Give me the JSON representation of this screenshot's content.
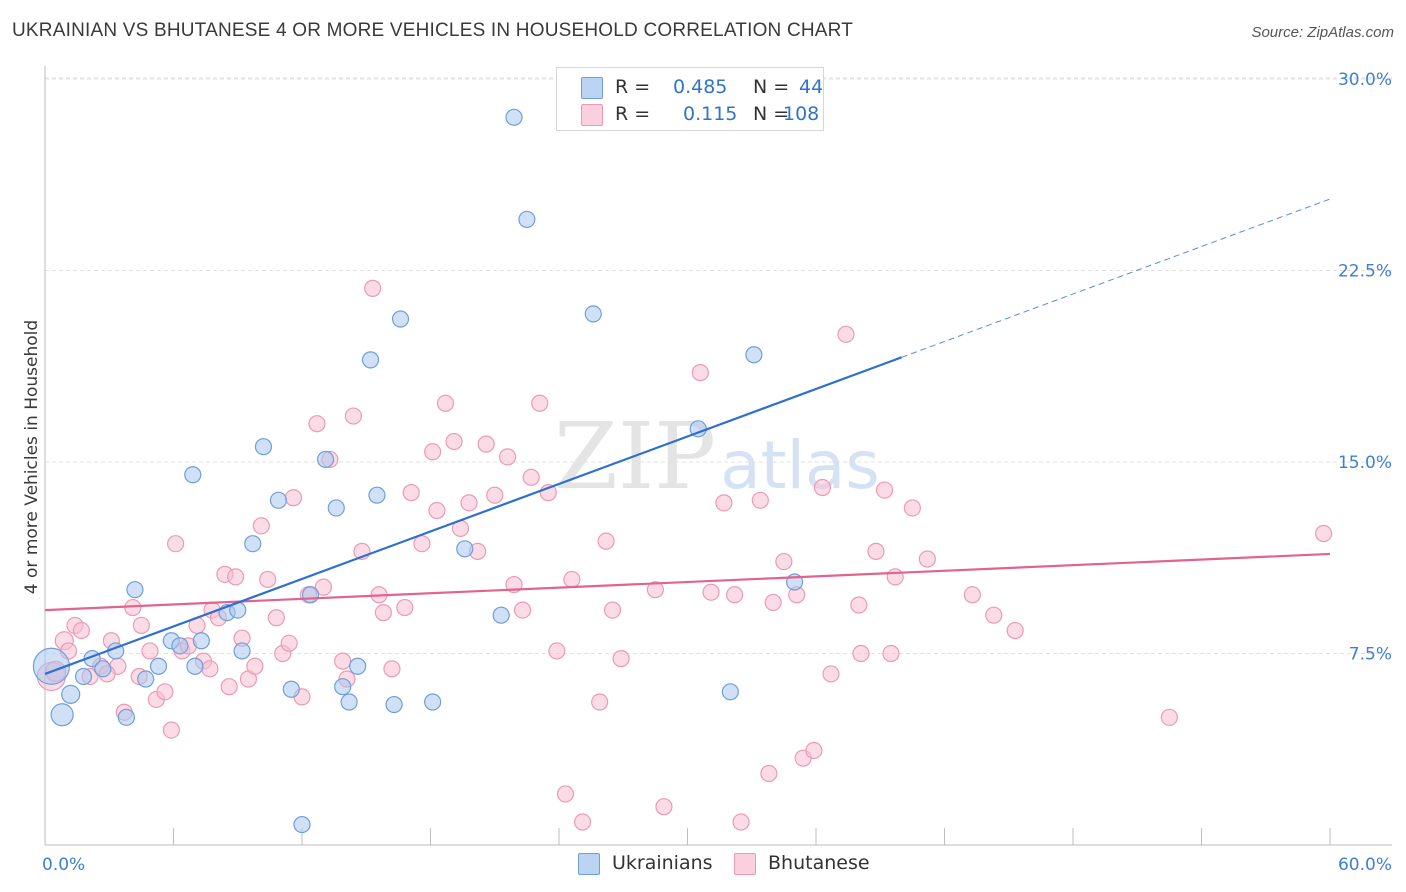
{
  "title": "UKRAINIAN VS BHUTANESE 4 OR MORE VEHICLES IN HOUSEHOLD CORRELATION CHART",
  "source": "Source: ZipAtlas.com",
  "watermark": {
    "zip": "ZIP",
    "atlas": "atlas"
  },
  "colors": {
    "blue_fill": "#aac8f0",
    "blue_stroke": "#6f9fd8",
    "blue_line": "#2e6fd0",
    "pink_fill": "#f8c0d2",
    "pink_stroke": "#ec9ab4",
    "pink_line": "#e0648f",
    "axis_label": "#3f7fd0"
  },
  "legend": {
    "rows": [
      {
        "r_label": "R =",
        "r_value": "0.485",
        "n_label": "N =",
        "n_value": "44"
      },
      {
        "r_label": "R =",
        "r_value": "0.115",
        "n_label": "N =",
        "n_value": "108"
      }
    ],
    "series": [
      "Ukrainians",
      "Bhutanese"
    ]
  },
  "chart_data": {
    "type": "scatter",
    "title": "UKRAINIAN VS BHUTANESE 4 OR MORE VEHICLES IN HOUSEHOLD CORRELATION CHART",
    "xlabel": "",
    "ylabel": "4 or more Vehicles in Household",
    "xlim": [
      0,
      60
    ],
    "ylim": [
      0,
      31
    ],
    "x_tick_labels": [
      "0.0%",
      "60.0%"
    ],
    "y_ticks": [
      7.5,
      15.0,
      22.5,
      30.0
    ],
    "y_tick_labels": [
      "7.5%",
      "15.0%",
      "22.5%",
      "30.0%"
    ],
    "grid": true,
    "series": [
      {
        "name": "Ukrainians",
        "color": "#aac8f0",
        "trend": {
          "x0": 0,
          "y0": 6.7,
          "x1": 40,
          "y1": 19.1,
          "dash_to_x": 60,
          "dash_to_y": 25.3
        },
        "points": [
          [
            0.3,
            7.0,
            18
          ],
          [
            0.8,
            5.1,
            11
          ],
          [
            1.2,
            5.9,
            9
          ],
          [
            1.8,
            6.6,
            8
          ],
          [
            2.2,
            7.3,
            8
          ],
          [
            2.7,
            6.9,
            8
          ],
          [
            3.3,
            7.6,
            8
          ],
          [
            3.8,
            5.0,
            8
          ],
          [
            4.2,
            10.0,
            8
          ],
          [
            4.7,
            6.5,
            8
          ],
          [
            5.3,
            7.0,
            8
          ],
          [
            5.9,
            8.0,
            8
          ],
          [
            6.3,
            7.8,
            8
          ],
          [
            6.9,
            14.5,
            8
          ],
          [
            7.0,
            7.0,
            8
          ],
          [
            7.3,
            8.0,
            8
          ],
          [
            8.5,
            9.1,
            8
          ],
          [
            9.2,
            7.6,
            8
          ],
          [
            9.7,
            11.8,
            8
          ],
          [
            10.2,
            15.6,
            8
          ],
          [
            10.9,
            13.5,
            8
          ],
          [
            11.5,
            6.1,
            8
          ],
          [
            12.0,
            0.8,
            8
          ],
          [
            12.4,
            9.8,
            8
          ],
          [
            13.1,
            15.1,
            8
          ],
          [
            13.6,
            13.2,
            8
          ],
          [
            13.9,
            6.2,
            8
          ],
          [
            14.2,
            5.6,
            8
          ],
          [
            14.6,
            7.0,
            8
          ],
          [
            15.2,
            19.0,
            8
          ],
          [
            15.5,
            13.7,
            8
          ],
          [
            16.3,
            5.5,
            8
          ],
          [
            16.6,
            20.6,
            8
          ],
          [
            18.1,
            5.6,
            8
          ],
          [
            19.6,
            11.6,
            8
          ],
          [
            21.3,
            9.0,
            8
          ],
          [
            21.9,
            28.5,
            8
          ],
          [
            22.5,
            24.5,
            8
          ],
          [
            25.6,
            20.8,
            8
          ],
          [
            30.5,
            16.3,
            8
          ],
          [
            32.0,
            6.0,
            8
          ],
          [
            33.1,
            19.2,
            8
          ],
          [
            35.0,
            10.3,
            8
          ],
          [
            9.0,
            9.2,
            8
          ]
        ]
      },
      {
        "name": "Bhutanese",
        "color": "#f8c0d2",
        "trend": {
          "x0": 0,
          "y0": 9.2,
          "x1": 60,
          "y1": 11.4
        },
        "points": [
          [
            0.3,
            6.6,
            14
          ],
          [
            0.9,
            8.0,
            9
          ],
          [
            1.1,
            7.6,
            8
          ],
          [
            1.4,
            8.6,
            8
          ],
          [
            1.7,
            8.4,
            8
          ],
          [
            2.1,
            6.6,
            8
          ],
          [
            2.6,
            7.0,
            8
          ],
          [
            3.1,
            8.0,
            8
          ],
          [
            3.4,
            7.0,
            8
          ],
          [
            3.7,
            5.2,
            8
          ],
          [
            4.1,
            9.3,
            8
          ],
          [
            4.5,
            8.6,
            8
          ],
          [
            4.9,
            7.6,
            8
          ],
          [
            5.2,
            5.7,
            8
          ],
          [
            5.6,
            6.0,
            8
          ],
          [
            5.9,
            4.5,
            8
          ],
          [
            6.1,
            11.8,
            8
          ],
          [
            6.4,
            7.6,
            8
          ],
          [
            6.7,
            7.8,
            8
          ],
          [
            7.1,
            8.6,
            8
          ],
          [
            7.4,
            7.2,
            8
          ],
          [
            7.7,
            6.9,
            8
          ],
          [
            7.8,
            9.2,
            8
          ],
          [
            8.1,
            8.9,
            8
          ],
          [
            8.4,
            10.6,
            8
          ],
          [
            8.6,
            6.2,
            8
          ],
          [
            8.9,
            10.5,
            8
          ],
          [
            9.2,
            8.1,
            8
          ],
          [
            9.5,
            6.5,
            8
          ],
          [
            9.8,
            7.0,
            8
          ],
          [
            10.1,
            12.5,
            8
          ],
          [
            10.4,
            10.4,
            8
          ],
          [
            10.8,
            8.9,
            8
          ],
          [
            11.1,
            7.5,
            8
          ],
          [
            11.4,
            7.9,
            8
          ],
          [
            11.6,
            13.6,
            8
          ],
          [
            12.0,
            5.8,
            8
          ],
          [
            12.3,
            9.8,
            8
          ],
          [
            12.7,
            16.5,
            8
          ],
          [
            13.0,
            10.1,
            8
          ],
          [
            13.3,
            15.1,
            8
          ],
          [
            13.9,
            7.2,
            8
          ],
          [
            14.1,
            6.5,
            8
          ],
          [
            14.4,
            16.8,
            8
          ],
          [
            14.8,
            11.5,
            8
          ],
          [
            15.3,
            21.8,
            8
          ],
          [
            15.6,
            9.8,
            8
          ],
          [
            15.8,
            9.1,
            8
          ],
          [
            16.2,
            6.9,
            8
          ],
          [
            16.8,
            9.3,
            8
          ],
          [
            17.1,
            13.8,
            8
          ],
          [
            17.6,
            11.8,
            8
          ],
          [
            18.1,
            15.4,
            8
          ],
          [
            18.3,
            13.1,
            8
          ],
          [
            18.7,
            17.3,
            8
          ],
          [
            19.1,
            15.8,
            8
          ],
          [
            19.4,
            12.4,
            8
          ],
          [
            19.8,
            13.4,
            8
          ],
          [
            20.2,
            11.5,
            8
          ],
          [
            20.6,
            15.7,
            8
          ],
          [
            21.0,
            13.7,
            8
          ],
          [
            21.6,
            15.2,
            8
          ],
          [
            21.9,
            10.2,
            8
          ],
          [
            22.3,
            9.2,
            8
          ],
          [
            22.7,
            14.4,
            8
          ],
          [
            23.1,
            17.3,
            8
          ],
          [
            23.5,
            13.8,
            8
          ],
          [
            23.9,
            7.6,
            8
          ],
          [
            24.3,
            2.0,
            8
          ],
          [
            24.6,
            10.4,
            8
          ],
          [
            25.1,
            0.9,
            8
          ],
          [
            25.9,
            5.6,
            8
          ],
          [
            26.2,
            11.9,
            8
          ],
          [
            26.5,
            9.2,
            8
          ],
          [
            26.9,
            7.3,
            8
          ],
          [
            28.5,
            10.0,
            8
          ],
          [
            28.9,
            1.5,
            8
          ],
          [
            30.6,
            18.5,
            8
          ],
          [
            31.1,
            9.9,
            8
          ],
          [
            31.7,
            13.4,
            8
          ],
          [
            32.2,
            9.8,
            8
          ],
          [
            32.5,
            0.9,
            8
          ],
          [
            33.4,
            13.5,
            8
          ],
          [
            33.8,
            2.8,
            8
          ],
          [
            34.0,
            9.5,
            8
          ],
          [
            34.5,
            11.1,
            8
          ],
          [
            35.1,
            9.8,
            8
          ],
          [
            35.4,
            3.4,
            8
          ],
          [
            35.9,
            3.7,
            8
          ],
          [
            36.3,
            14.0,
            8
          ],
          [
            36.7,
            6.7,
            8
          ],
          [
            37.4,
            20.0,
            8
          ],
          [
            38.0,
            9.4,
            8
          ],
          [
            38.1,
            7.5,
            8
          ],
          [
            38.8,
            11.5,
            8
          ],
          [
            39.2,
            13.9,
            8
          ],
          [
            39.5,
            7.5,
            8
          ],
          [
            39.7,
            10.5,
            8
          ],
          [
            40.5,
            13.2,
            8
          ],
          [
            41.2,
            11.2,
            8
          ],
          [
            43.3,
            9.8,
            8
          ],
          [
            44.3,
            9.0,
            8
          ],
          [
            45.3,
            8.4,
            8
          ],
          [
            52.5,
            5.0,
            8
          ],
          [
            59.7,
            12.2,
            8
          ],
          [
            0.5,
            6.8,
            10
          ],
          [
            2.9,
            6.7,
            8
          ],
          [
            4.4,
            6.6,
            8
          ]
        ]
      }
    ]
  }
}
